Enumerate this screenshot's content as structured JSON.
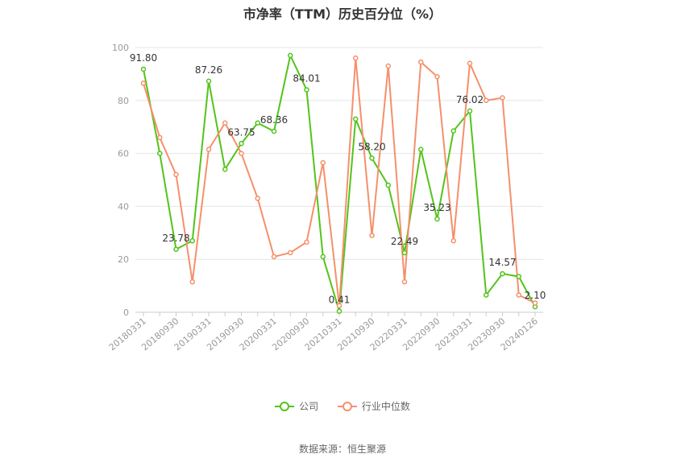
{
  "chart_data": {
    "type": "line",
    "title": "市净率（TTM）历史百分位（%）",
    "source_text": "数据来源：恒生聚源",
    "ylim": [
      0,
      100
    ],
    "yticks": [
      0,
      20,
      40,
      60,
      80,
      100
    ],
    "grid": true,
    "legend_position": "bottom-center",
    "tick_labels": [
      "20180331",
      "20180930",
      "20190331",
      "20190930",
      "20200331",
      "20200930",
      "20210331",
      "20210930",
      "20220331",
      "20220930",
      "20230331",
      "20230930",
      "20240126"
    ],
    "x": [
      "20180331",
      "20180630",
      "20180930",
      "20181231",
      "20190331",
      "20190630",
      "20190930",
      "20191231",
      "20200331",
      "20200630",
      "20200930",
      "20201231",
      "20210331",
      "20210630",
      "20210930",
      "20211231",
      "20220331",
      "20220630",
      "20220930",
      "20221231",
      "20230331",
      "20230630",
      "20230930",
      "20231231",
      "20240126"
    ],
    "series": [
      {
        "name": "公司",
        "color": "#52c41a",
        "values": [
          91.8,
          60,
          23.78,
          27,
          87.26,
          54,
          63.75,
          71.5,
          68.36,
          97,
          84.01,
          21,
          0.41,
          73,
          58.2,
          48,
          22.49,
          61.5,
          35.23,
          68.5,
          76.02,
          6.5,
          14.57,
          13.5,
          2.1
        ],
        "labels": [
          "91.80",
          "",
          "23.78",
          "",
          "87.26",
          "",
          "63.75",
          "",
          "68.36",
          "",
          "84.01",
          "",
          "0.41",
          "",
          "58.20",
          "",
          "22.49",
          "",
          "35.23",
          "",
          "76.02",
          "",
          "14.57",
          "",
          "2.10"
        ]
      },
      {
        "name": "行业中位数",
        "color": "#f5906b",
        "values": [
          86.5,
          66,
          52,
          11.5,
          61.5,
          71.5,
          60,
          43,
          21,
          22.5,
          26.5,
          56.5,
          2.5,
          96,
          29,
          93,
          11.5,
          94.5,
          89,
          27,
          94,
          80,
          81,
          6.5,
          3.5
        ]
      }
    ]
  }
}
